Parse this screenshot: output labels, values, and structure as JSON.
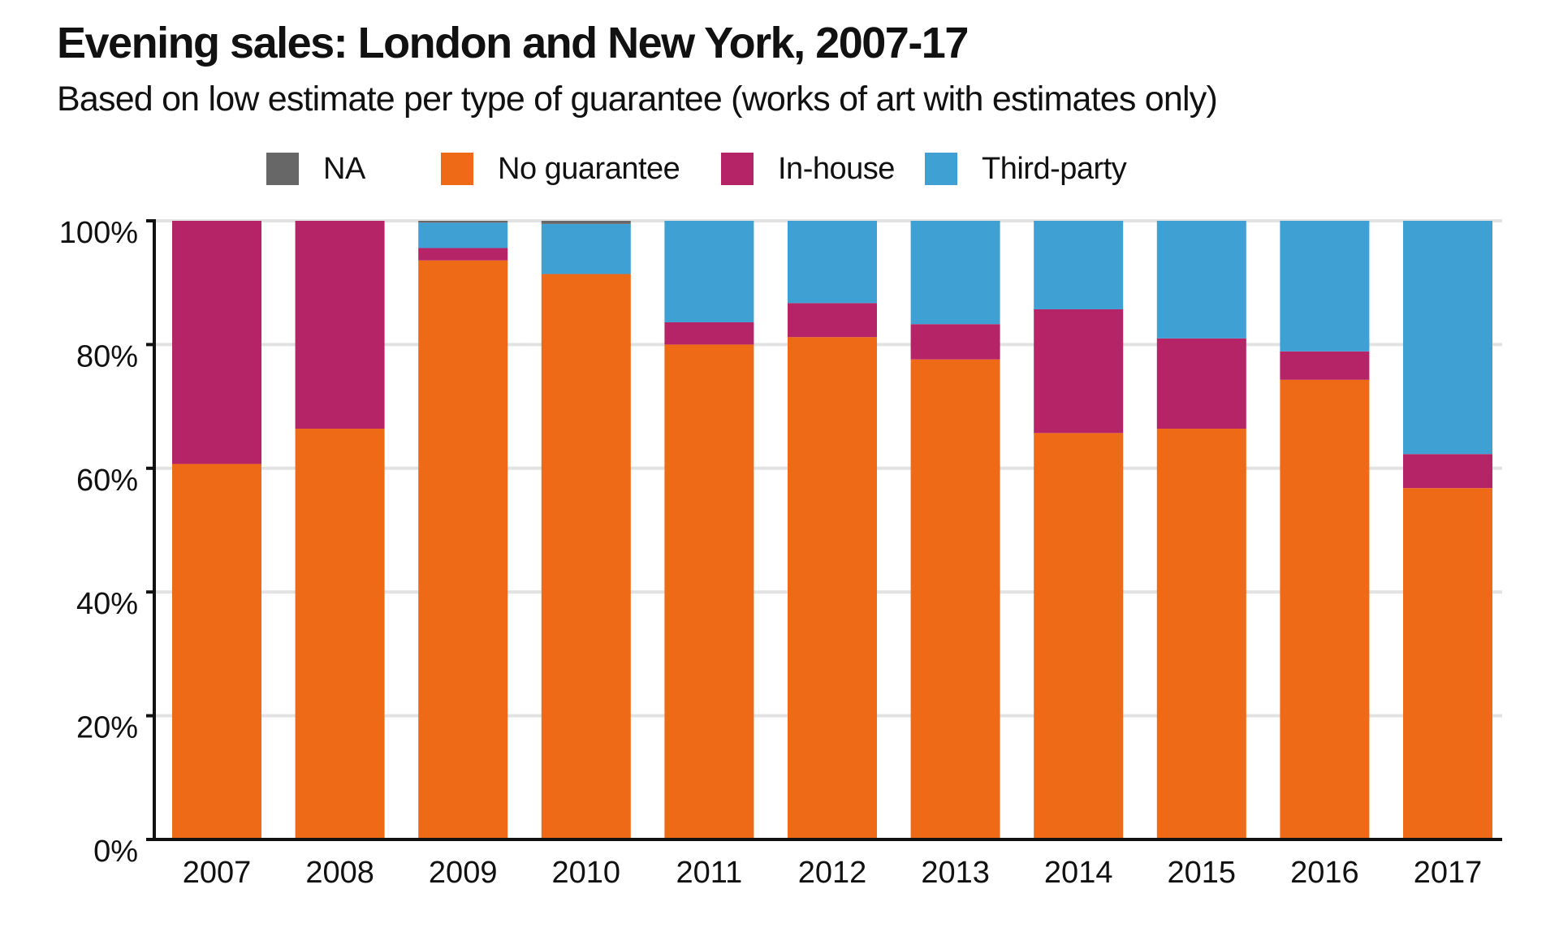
{
  "title": "Evening sales: London and New York, 2007-17",
  "subtitle": "Based on low estimate per type of guarantee (works of art with estimates only)",
  "chart_data": {
    "type": "bar",
    "stacked": true,
    "categories": [
      "2007",
      "2008",
      "2009",
      "2010",
      "2011",
      "2012",
      "2013",
      "2014",
      "2015",
      "2016",
      "2017"
    ],
    "series": [
      {
        "name": "No guarantee",
        "color": "#ee6a17",
        "values": [
          60.7,
          66.4,
          93.6,
          91.4,
          80.0,
          81.2,
          77.6,
          65.7,
          66.4,
          74.3,
          56.8
        ]
      },
      {
        "name": "In-house",
        "color": "#b62468",
        "values": [
          39.3,
          33.6,
          2.0,
          0.0,
          3.6,
          5.5,
          5.7,
          20.0,
          14.6,
          4.6,
          5.5
        ]
      },
      {
        "name": "Third-party",
        "color": "#3fa0d4",
        "values": [
          0.0,
          0.0,
          4.1,
          8.1,
          16.4,
          13.3,
          16.7,
          14.3,
          19.0,
          21.1,
          37.7
        ]
      },
      {
        "name": "NA",
        "color": "#676767",
        "values": [
          0.0,
          0.0,
          0.3,
          0.5,
          0.0,
          0.0,
          0.0,
          0.0,
          0.0,
          0.0,
          0.0
        ]
      }
    ],
    "legend_order": [
      "NA",
      "No guarantee",
      "In-house",
      "Third-party"
    ],
    "yticks": [
      "0%",
      "20%",
      "40%",
      "60%",
      "80%",
      "100%"
    ],
    "ylim": [
      0,
      100
    ],
    "grid": true,
    "legend_position": "top"
  }
}
